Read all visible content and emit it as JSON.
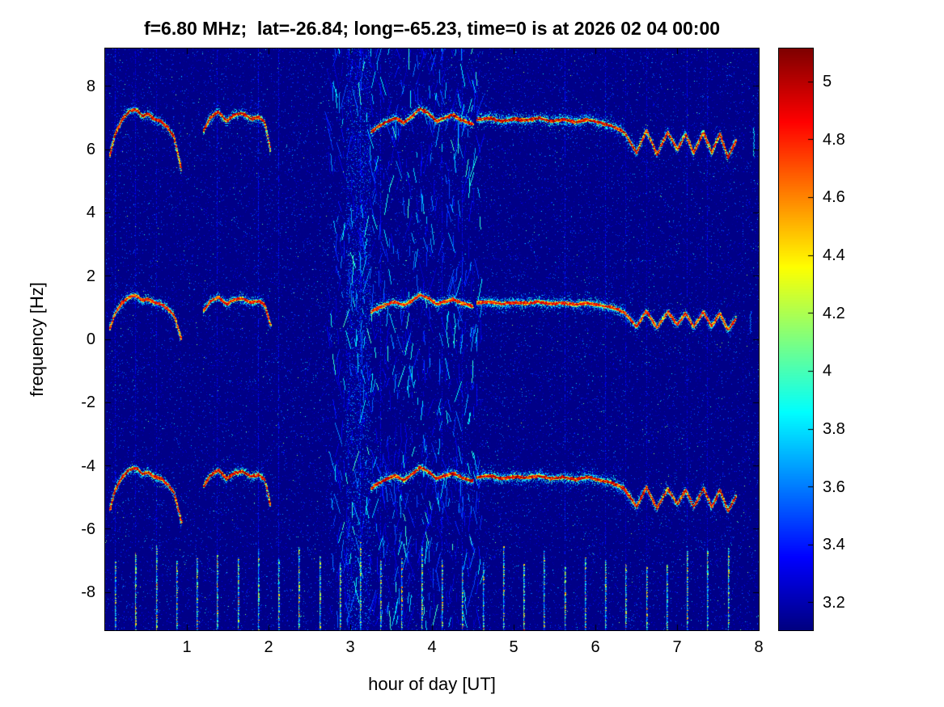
{
  "chart_data": {
    "type": "heatmap",
    "title": "f=6.80 MHz;  lat=-26.84; long=-65.23, time=0 is at 2026 02 04 00:00",
    "xlabel": "hour of day [UT]",
    "ylabel": "frequency [Hz]",
    "xlim": [
      0,
      8
    ],
    "ylim": [
      -9.2,
      9.2
    ],
    "xticks": [
      1,
      2,
      3,
      4,
      5,
      6,
      7,
      8
    ],
    "yticks": [
      -8,
      -6,
      -4,
      -2,
      0,
      2,
      4,
      6,
      8
    ],
    "colorbar": {
      "min": 3.105,
      "max": 5.115,
      "ticks": [
        3.2,
        3.4,
        3.6,
        3.8,
        4,
        4.2,
        4.4,
        4.6,
        4.8,
        5
      ],
      "colormap": "jet",
      "position": "right"
    },
    "background_value": 3.12,
    "grid": false,
    "trace_segments": [
      [
        0.05,
        0.93
      ],
      [
        1.2,
        2.02
      ],
      [
        3.25,
        4.5
      ],
      [
        4.55,
        7.72
      ]
    ],
    "trace_shape": [
      [
        0.05,
        -1.05
      ],
      [
        0.12,
        -0.35
      ],
      [
        0.2,
        0.1
      ],
      [
        0.3,
        0.38
      ],
      [
        0.38,
        0.42
      ],
      [
        0.45,
        0.2
      ],
      [
        0.52,
        0.28
      ],
      [
        0.6,
        0.1
      ],
      [
        0.68,
        0.05
      ],
      [
        0.76,
        -0.15
      ],
      [
        0.84,
        -0.45
      ],
      [
        0.93,
        -1.5
      ],
      [
        1.2,
        -0.25
      ],
      [
        1.28,
        0.15
      ],
      [
        1.38,
        0.35
      ],
      [
        1.48,
        0.05
      ],
      [
        1.58,
        0.25
      ],
      [
        1.68,
        0.3
      ],
      [
        1.78,
        0.12
      ],
      [
        1.88,
        0.18
      ],
      [
        1.95,
        0.0
      ],
      [
        2.02,
        -0.9
      ],
      [
        3.25,
        -0.3
      ],
      [
        3.35,
        -0.1
      ],
      [
        3.45,
        0.05
      ],
      [
        3.55,
        0.15
      ],
      [
        3.65,
        0.0
      ],
      [
        3.75,
        0.2
      ],
      [
        3.85,
        0.45
      ],
      [
        3.95,
        0.3
      ],
      [
        4.05,
        0.05
      ],
      [
        4.15,
        0.15
      ],
      [
        4.25,
        0.25
      ],
      [
        4.35,
        0.1
      ],
      [
        4.5,
        -0.05
      ],
      [
        4.55,
        0.1
      ],
      [
        4.7,
        0.15
      ],
      [
        4.85,
        0.05
      ],
      [
        5.0,
        0.12
      ],
      [
        5.15,
        0.08
      ],
      [
        5.3,
        0.15
      ],
      [
        5.45,
        0.05
      ],
      [
        5.6,
        0.1
      ],
      [
        5.75,
        0.02
      ],
      [
        5.9,
        0.1
      ],
      [
        6.05,
        0.0
      ],
      [
        6.2,
        -0.1
      ],
      [
        6.35,
        -0.3
      ],
      [
        6.5,
        -0.95
      ],
      [
        6.62,
        -0.25
      ],
      [
        6.75,
        -1.0
      ],
      [
        6.88,
        -0.3
      ],
      [
        7.0,
        -0.85
      ],
      [
        7.1,
        -0.35
      ],
      [
        7.2,
        -0.95
      ],
      [
        7.32,
        -0.3
      ],
      [
        7.42,
        -0.95
      ],
      [
        7.52,
        -0.35
      ],
      [
        7.62,
        -1.1
      ],
      [
        7.72,
        -0.55
      ]
    ],
    "traces": [
      {
        "name": "doppler-trace-upper",
        "center": 6.85,
        "scale": 1.0,
        "gain": 1.0
      },
      {
        "name": "doppler-trace-middle",
        "center": 1.08,
        "scale": 0.72,
        "gain": 0.95
      },
      {
        "name": "doppler-trace-lower",
        "center": -4.45,
        "scale": 0.9,
        "gain": 1.0
      }
    ],
    "comb": {
      "x_start": 0.125,
      "x_step": 0.25,
      "x_end": 7.64,
      "y_bottom": -9.2,
      "y_top_mean": -6.8,
      "y_top_jitter": 0.4
    },
    "noise_band": {
      "x_min": 2.75,
      "x_max": 4.6
    },
    "extra_marks": [
      {
        "x": 7.94,
        "y1": 5.8,
        "y2": 6.7,
        "v": 3.85
      },
      {
        "x": 7.9,
        "y1": 0.2,
        "y2": 0.9,
        "v": 3.6
      }
    ]
  }
}
